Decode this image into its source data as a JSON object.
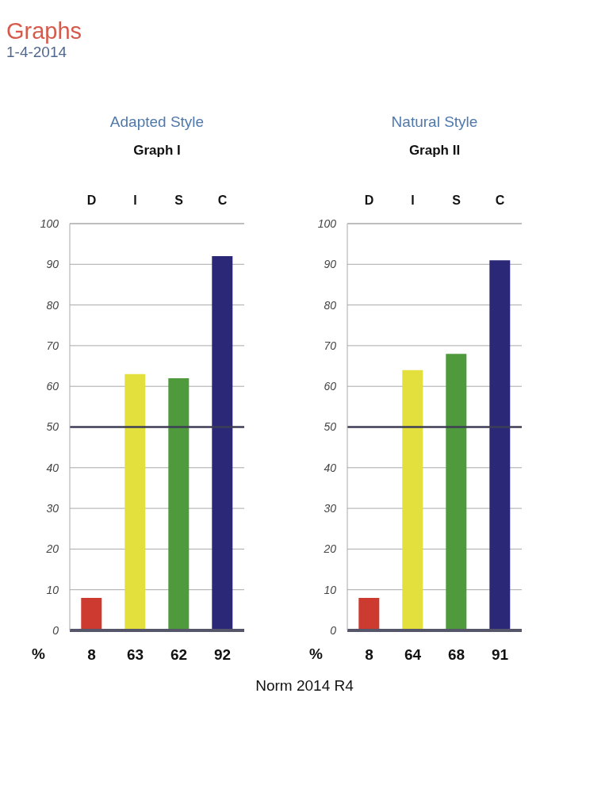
{
  "chart_data": [
    {
      "type": "other",
      "title": "Graphs",
      "subtitle": "1-4-2014"
    },
    {
      "type": "bar",
      "title": "Adapted Style",
      "subtitle": "Graph I",
      "categories": [
        "D",
        "I",
        "S",
        "C"
      ],
      "values": [
        8,
        63,
        62,
        92
      ],
      "colors": [
        "#cc3a30",
        "#e3df3c",
        "#4e9a3c",
        "#2c2878"
      ],
      "ylim": [
        0,
        100
      ],
      "yticks": [
        0,
        10,
        20,
        30,
        40,
        50,
        60,
        70,
        80,
        90,
        100
      ],
      "grid": "y",
      "ref_lines": [
        {
          "axis": "y",
          "value": 50,
          "color": "#3d3d55"
        }
      ],
      "data_labels": true,
      "ylabel": "%"
    },
    {
      "type": "bar",
      "title": "Natural Style",
      "subtitle": "Graph II",
      "categories": [
        "D",
        "I",
        "S",
        "C"
      ],
      "values": [
        8,
        64,
        68,
        91
      ],
      "colors": [
        "#cc3a30",
        "#e3df3c",
        "#4e9a3c",
        "#2c2878"
      ],
      "ylim": [
        0,
        100
      ],
      "yticks": [
        0,
        10,
        20,
        30,
        40,
        50,
        60,
        70,
        80,
        90,
        100
      ],
      "grid": "y",
      "ref_lines": [
        {
          "axis": "y",
          "value": 50,
          "color": "#3d3d55"
        }
      ],
      "data_labels": true,
      "ylabel": "%"
    },
    {
      "type": "other",
      "annotations": [
        "Norm 2014 R4"
      ]
    }
  ]
}
